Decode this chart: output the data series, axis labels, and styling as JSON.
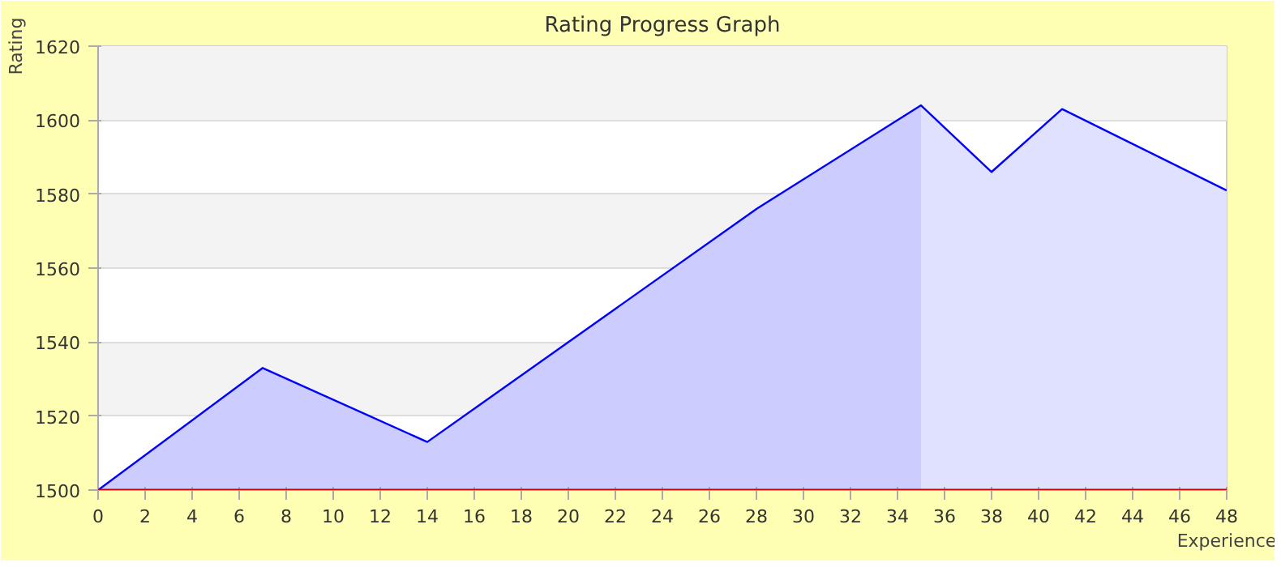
{
  "chart_data": {
    "type": "area",
    "title": "Rating Progress Graph",
    "xlabel": "Experience",
    "ylabel": "Rating",
    "series": [
      {
        "color": "#ccccff",
        "x": [
          0,
          7,
          14,
          28,
          35
        ],
        "values": [
          1500,
          1533,
          1513,
          1576,
          1604
        ]
      },
      {
        "color": "#e0e0ff",
        "x": [
          35,
          38,
          41,
          48
        ],
        "values": [
          1604,
          1586,
          1603,
          1581
        ]
      },
      {
        "type": "line",
        "color": "#0000ff",
        "x": [
          0,
          7,
          14,
          28,
          35,
          38,
          41,
          48
        ],
        "values": [
          1500,
          1533,
          1513,
          1576,
          1604,
          1586,
          1603,
          1581
        ]
      }
    ],
    "xlim": [
      0,
      48
    ],
    "ylim": [
      1500,
      1620
    ],
    "xticks": [
      0,
      2,
      4,
      6,
      8,
      10,
      12,
      14,
      16,
      18,
      20,
      22,
      24,
      26,
      28,
      30,
      32,
      34,
      36,
      38,
      40,
      42,
      44,
      46,
      48
    ],
    "yticks": [
      1500,
      1520,
      1540,
      1560,
      1580,
      1600,
      1620
    ],
    "ref_lines": [
      {
        "axis": "y",
        "value": 1500,
        "color": "#cc0000"
      }
    ],
    "grid": "y",
    "marker": "none",
    "line_style": "solid"
  }
}
